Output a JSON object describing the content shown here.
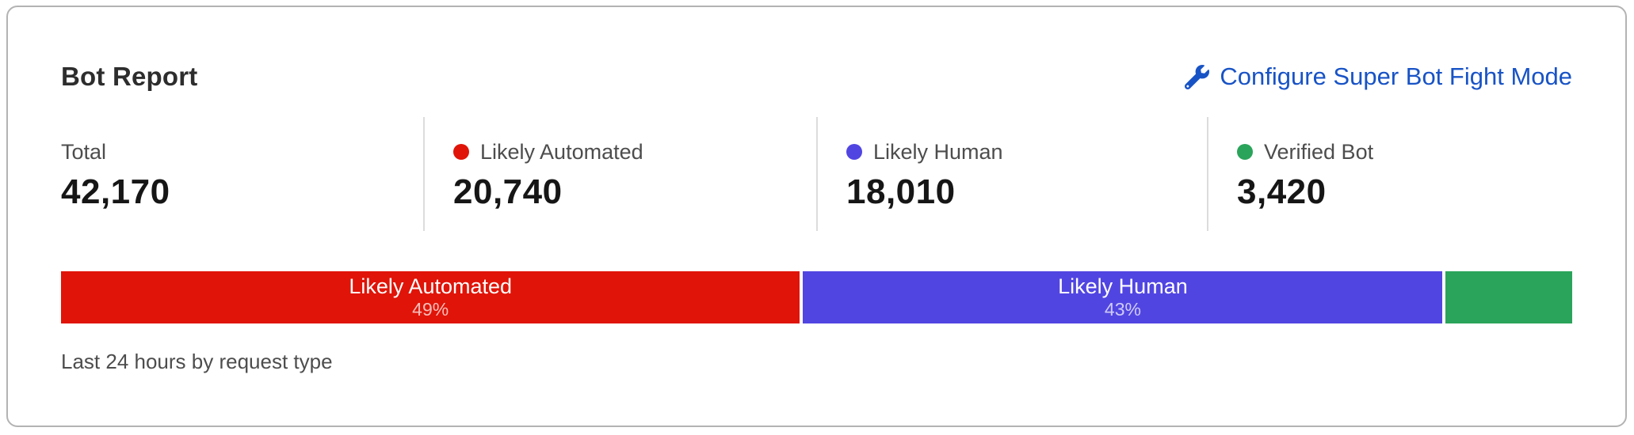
{
  "card": {
    "title": "Bot Report",
    "action": {
      "label": "Configure Super Bot Fight Mode",
      "icon": "wrench-icon"
    },
    "stats": [
      {
        "label": "Total",
        "value": "42,170",
        "dot_color": null
      },
      {
        "label": "Likely Automated",
        "value": "20,740",
        "dot_color": "#e01408"
      },
      {
        "label": "Likely Human",
        "value": "18,010",
        "dot_color": "#5145e2"
      },
      {
        "label": "Verified Bot",
        "value": "3,420",
        "dot_color": "#2aa45a"
      }
    ],
    "footnote": "Last 24 hours by request type"
  },
  "chart_data": {
    "type": "bar",
    "variant": "stacked-percentage-single-bar",
    "title": "Bot Report",
    "subtitle": "Last 24 hours by request type",
    "total": 42170,
    "segments": [
      {
        "name": "Likely Automated",
        "value": 20740,
        "percent": 49.1,
        "percent_label": "49%",
        "color": "#e01408",
        "label_visible": true
      },
      {
        "name": "Likely Human",
        "value": 18010,
        "percent": 42.5,
        "percent_label": "43%",
        "color": "#5145e2",
        "label_visible": true
      },
      {
        "name": "Verified Bot",
        "value": 3420,
        "percent": 8.4,
        "percent_label": "8%",
        "color": "#2aa45a",
        "label_visible": false
      }
    ],
    "legend_position": "top-stats-row",
    "axis": "none"
  },
  "colors": {
    "link_blue": "#1853c6",
    "red": "#e01408",
    "indigo": "#5145e2",
    "green": "#2aa45a",
    "card_border": "#b3b3b3",
    "divider": "#dcdcdc",
    "text_dark": "#161616",
    "text_gray": "#4d4d4d"
  }
}
